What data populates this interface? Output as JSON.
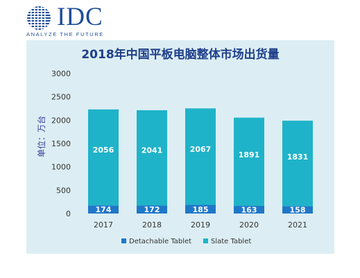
{
  "logo": {
    "name": "IDC",
    "tagline": "ANALYZE THE FUTURE"
  },
  "colors": {
    "brand": "#1f4e99",
    "panel_bg": "#dceef3",
    "title": "#1f3e8a",
    "detachable": "#1f77c8",
    "slate": "#1fb3c9",
    "label_text": "#ffffff",
    "axis_text": "#333333"
  },
  "chart_data": {
    "type": "bar",
    "stacked": true,
    "title": "2018年中国平板电脑整体市场出货量",
    "ylabel": "单位：万台",
    "xlabel": "",
    "categories": [
      "2017",
      "2018",
      "2019",
      "2020",
      "2021"
    ],
    "series": [
      {
        "name": "Detachable Tablet",
        "values": [
          174,
          172,
          185,
          163,
          158
        ]
      },
      {
        "name": "Slate Tablet",
        "values": [
          2056,
          2041,
          2067,
          1891,
          1831
        ]
      }
    ],
    "ylim": [
      0,
      3000
    ],
    "yticks": [
      0,
      500,
      1000,
      1500,
      2000,
      2500,
      3000
    ],
    "grid": false,
    "legend_position": "bottom"
  }
}
